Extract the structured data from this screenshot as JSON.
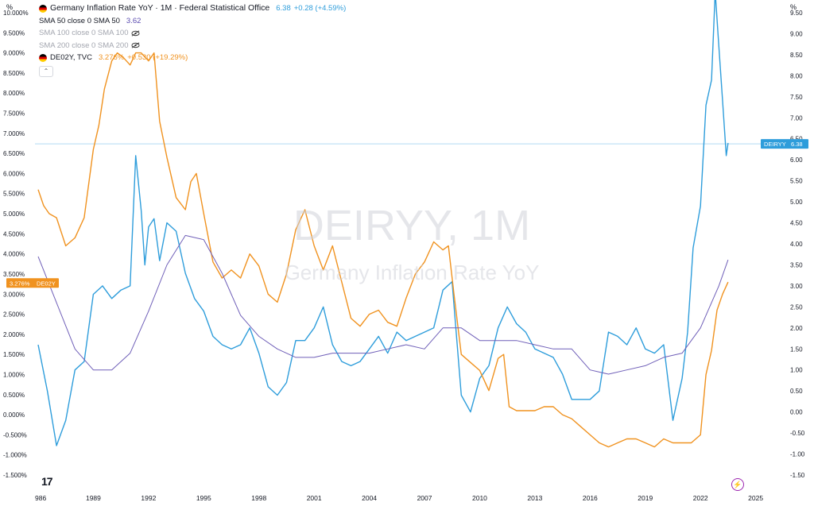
{
  "chart_data": {
    "type": "line",
    "title": "Germany Inflation Rate YoY · 1M · Federal Statistical Office",
    "watermark": {
      "symbol": "DEIRYY, 1M",
      "name": "Germany Inflation Rate YoY"
    },
    "x_ticks": [
      "986",
      "1989",
      "1992",
      "1995",
      "1998",
      "2001",
      "2004",
      "2007",
      "2010",
      "2013",
      "2016",
      "2019",
      "2022",
      "2025"
    ],
    "left_axis": {
      "unit": "%",
      "ylim": [
        -1.5,
        10.0
      ],
      "ticks": [
        "10.000%",
        "9.500%",
        "9.000%",
        "8.500%",
        "8.000%",
        "7.500%",
        "7.000%",
        "6.500%",
        "6.000%",
        "5.500%",
        "5.000%",
        "4.500%",
        "4.000%",
        "3.500%",
        "3.000%",
        "2.500%",
        "2.000%",
        "1.500%",
        "1.000%",
        "0.500%",
        "0.000%",
        "-0.500%",
        "-1.000%",
        "-1.500%"
      ]
    },
    "right_axis": {
      "unit": "%",
      "ylim": [
        -1.5,
        9.5
      ],
      "ticks": [
        "9.50",
        "9.00",
        "8.50",
        "8.00",
        "7.50",
        "7.00",
        "6.50",
        "6.00",
        "5.50",
        "5.00",
        "4.50",
        "4.00",
        "3.50",
        "3.00",
        "2.50",
        "2.00",
        "1.50",
        "1.00",
        "0.50",
        "0.00",
        "-0.50",
        "-1.00",
        "-1.50"
      ]
    },
    "grid": false,
    "legend": {
      "main": {
        "name": "Germany Inflation Rate YoY · 1M · Federal Statistical Office",
        "value": "6.38",
        "change": "+0.28 (+4.59%)"
      },
      "sma50": {
        "name": "SMA 50 close 0 SMA 50",
        "value": "3.62"
      },
      "sma100": {
        "name": "SMA 100 close 0 SMA 100"
      },
      "sma200": {
        "name": "SMA 200 close 0 SMA 200"
      },
      "de02y": {
        "name": "DE02Y, TVC",
        "value": "3.276%",
        "change": "+0.530 (+19.29%)"
      }
    },
    "axis_badges": {
      "left": {
        "value": "3.276%",
        "label": "DE02Y"
      },
      "right": {
        "label": "DEIRYY",
        "value": "6.38"
      }
    },
    "current_line": 6.38,
    "series": [
      {
        "name": "DEIRYY",
        "axis": "right",
        "color": "#2e9ddb",
        "x": [
          1986.0,
          1986.5,
          1987.0,
          1987.5,
          1988.0,
          1988.5,
          1989.0,
          1989.5,
          1990.0,
          1990.5,
          1991.0,
          1991.3,
          1991.6,
          1991.8,
          1992.0,
          1992.3,
          1992.6,
          1993.0,
          1993.5,
          1994.0,
          1994.5,
          1995.0,
          1995.5,
          1996.0,
          1996.5,
          1997.0,
          1997.5,
          1998.0,
          1998.5,
          1999.0,
          1999.5,
          2000.0,
          2000.5,
          2001.0,
          2001.5,
          2002.0,
          2002.5,
          2003.0,
          2003.5,
          2004.0,
          2004.5,
          2005.0,
          2005.5,
          2006.0,
          2006.5,
          2007.0,
          2007.5,
          2008.0,
          2008.5,
          2009.0,
          2009.5,
          2010.0,
          2010.5,
          2011.0,
          2011.5,
          2012.0,
          2012.5,
          2013.0,
          2013.5,
          2014.0,
          2014.5,
          2015.0,
          2015.5,
          2016.0,
          2016.5,
          2017.0,
          2017.5,
          2018.0,
          2018.5,
          2019.0,
          2019.5,
          2020.0,
          2020.5,
          2021.0,
          2021.3,
          2021.6,
          2022.0,
          2022.3,
          2022.6,
          2022.8,
          2023.0,
          2023.2,
          2023.4,
          2023.5
        ],
        "values": [
          1.6,
          0.5,
          -0.8,
          -0.2,
          1.0,
          1.2,
          2.8,
          3.0,
          2.7,
          2.9,
          3.0,
          6.1,
          4.8,
          3.5,
          4.4,
          4.6,
          3.6,
          4.5,
          4.3,
          3.3,
          2.7,
          2.4,
          1.8,
          1.6,
          1.5,
          1.6,
          2.0,
          1.4,
          0.6,
          0.4,
          0.7,
          1.7,
          1.7,
          2.0,
          2.5,
          1.6,
          1.2,
          1.1,
          1.2,
          1.5,
          1.8,
          1.4,
          1.9,
          1.7,
          1.8,
          1.9,
          2.0,
          2.9,
          3.1,
          0.4,
          0.0,
          0.8,
          1.1,
          2.0,
          2.5,
          2.1,
          1.9,
          1.5,
          1.4,
          1.3,
          0.9,
          0.3,
          0.3,
          0.3,
          0.5,
          1.9,
          1.8,
          1.6,
          2.0,
          1.5,
          1.4,
          1.6,
          -0.2,
          0.8,
          1.9,
          3.9,
          4.9,
          7.3,
          7.9,
          10.0,
          8.7,
          7.4,
          6.1,
          6.4
        ]
      },
      {
        "name": "DE02Y",
        "axis": "left",
        "color": "#f0921f",
        "x": [
          1986.0,
          1986.3,
          1986.6,
          1987.0,
          1987.5,
          1988.0,
          1988.5,
          1989.0,
          1989.3,
          1989.6,
          1990.0,
          1990.3,
          1990.6,
          1991.0,
          1991.3,
          1991.6,
          1992.0,
          1992.3,
          1992.6,
          1993.0,
          1993.5,
          1994.0,
          1994.3,
          1994.6,
          1995.0,
          1995.5,
          1996.0,
          1996.5,
          1997.0,
          1997.5,
          1998.0,
          1998.5,
          1999.0,
          1999.5,
          2000.0,
          2000.5,
          2001.0,
          2001.5,
          2002.0,
          2002.5,
          2003.0,
          2003.5,
          2004.0,
          2004.5,
          2005.0,
          2005.5,
          2006.0,
          2006.5,
          2007.0,
          2007.5,
          2008.0,
          2008.3,
          2008.6,
          2009.0,
          2009.5,
          2010.0,
          2010.5,
          2011.0,
          2011.3,
          2011.6,
          2012.0,
          2012.5,
          2013.0,
          2013.5,
          2014.0,
          2014.5,
          2015.0,
          2015.5,
          2016.0,
          2016.5,
          2017.0,
          2017.5,
          2018.0,
          2018.5,
          2019.0,
          2019.5,
          2020.0,
          2020.5,
          2021.0,
          2021.5,
          2022.0,
          2022.3,
          2022.6,
          2022.9,
          2023.2,
          2023.5
        ],
        "values": [
          5.6,
          5.2,
          5.0,
          4.9,
          4.2,
          4.4,
          4.9,
          6.6,
          7.2,
          8.1,
          8.8,
          9.0,
          8.9,
          8.7,
          9.0,
          9.0,
          8.8,
          9.0,
          7.3,
          6.4,
          5.4,
          5.1,
          5.8,
          6.0,
          5.0,
          3.8,
          3.4,
          3.6,
          3.4,
          4.0,
          3.7,
          3.0,
          2.8,
          3.5,
          4.6,
          5.1,
          4.2,
          3.6,
          4.2,
          3.3,
          2.4,
          2.2,
          2.5,
          2.6,
          2.3,
          2.2,
          2.9,
          3.5,
          3.8,
          4.3,
          4.1,
          4.2,
          3.0,
          1.5,
          1.3,
          1.1,
          0.6,
          1.4,
          1.5,
          0.2,
          0.1,
          0.1,
          0.1,
          0.2,
          0.2,
          0.0,
          -0.1,
          -0.3,
          -0.5,
          -0.7,
          -0.8,
          -0.7,
          -0.6,
          -0.6,
          -0.7,
          -0.8,
          -0.6,
          -0.7,
          -0.7,
          -0.7,
          -0.5,
          1.0,
          1.6,
          2.6,
          3.0,
          3.3
        ]
      },
      {
        "name": "SMA 50",
        "axis": "right",
        "color": "#6f5fb8",
        "x": [
          1986.0,
          1987.0,
          1988.0,
          1989.0,
          1990.0,
          1991.0,
          1992.0,
          1993.0,
          1994.0,
          1995.0,
          1996.0,
          1997.0,
          1998.0,
          1999.0,
          2000.0,
          2001.0,
          2002.0,
          2003.0,
          2004.0,
          2005.0,
          2006.0,
          2007.0,
          2008.0,
          2009.0,
          2010.0,
          2011.0,
          2012.0,
          2013.0,
          2014.0,
          2015.0,
          2016.0,
          2017.0,
          2018.0,
          2019.0,
          2020.0,
          2021.0,
          2022.0,
          2023.0,
          2023.5
        ],
        "values": [
          3.7,
          2.6,
          1.5,
          1.0,
          1.0,
          1.4,
          2.4,
          3.5,
          4.2,
          4.1,
          3.3,
          2.3,
          1.8,
          1.5,
          1.3,
          1.3,
          1.4,
          1.4,
          1.4,
          1.5,
          1.6,
          1.5,
          2.0,
          2.0,
          1.7,
          1.7,
          1.7,
          1.6,
          1.5,
          1.5,
          1.0,
          0.9,
          1.0,
          1.1,
          1.3,
          1.4,
          2.0,
          3.0,
          3.62
        ]
      }
    ]
  }
}
